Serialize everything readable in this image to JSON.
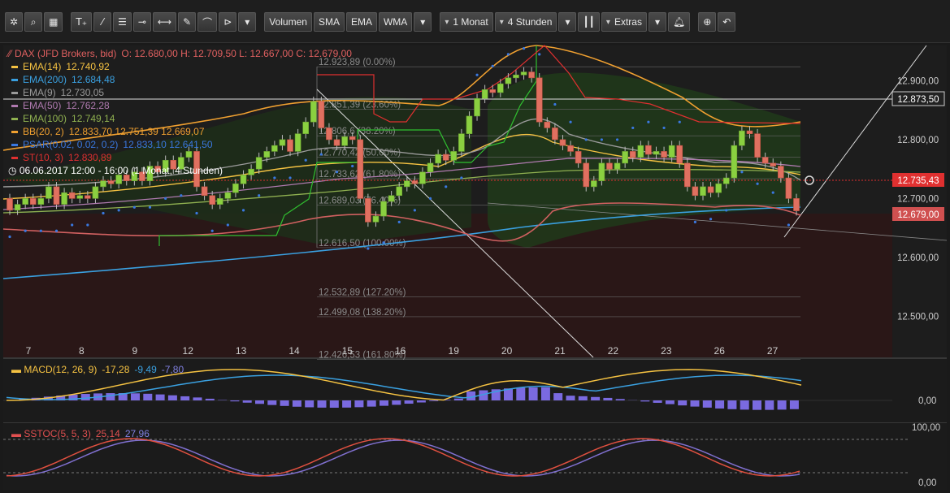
{
  "toolbar": {
    "icons": [
      "gear-icon",
      "search-icon",
      "grid-icon"
    ],
    "draw_icons": [
      "text-tool-icon",
      "line-tool-icon",
      "fibonacci-icon",
      "horizontal-line-icon",
      "segment-icon",
      "pencil-icon",
      "curve-icon",
      "arrow-tool-icon"
    ],
    "indicator_buttons": [
      "Volumen",
      "SMA",
      "EMA",
      "WMA"
    ],
    "period": "1 Monat",
    "interval": "4 Stunden",
    "chart_type_icon": "candlestick-icon",
    "extras": "Extras",
    "alarm_icon": "bell-icon",
    "zoom_icon": "zoom-icon",
    "undo_icon": "undo-icon"
  },
  "header": {
    "instrument": "DAX (JFD Brokers, bid)",
    "ohlc": "O: 12.680,00  H: 12.709,50  L: 12.667,00  C: 12.679,00",
    "legend": [
      {
        "label": "EMA(14)",
        "value": "12.740,92",
        "color": "#f5c242"
      },
      {
        "label": "EMA(200)",
        "value": "12.684,48",
        "color": "#3aa0e0"
      },
      {
        "label": "EMA(9)",
        "value": "12.730,05",
        "color": "#9a9a9a"
      },
      {
        "label": "EMA(50)",
        "value": "12.762,28",
        "color": "#b07ab0"
      },
      {
        "label": "EMA(100)",
        "value": "12.749,14",
        "color": "#8fb050"
      },
      {
        "label": "BB(20, 2)",
        "value": "12.833,70  12.751,39  12.669,07",
        "color": "#f0a030"
      },
      {
        "label": "PSAR(0.02, 0.02, 0.2)",
        "value": "12.833,10  12.641,50",
        "color": "#3a78e0"
      },
      {
        "label": "ST(10, 3)",
        "value": "12.830,89",
        "color": "#e03030"
      }
    ],
    "crosshair_date": "06.06.2017 12:00 - 16:00  (1 Monat, 4 Stunden)"
  },
  "price_labels": {
    "level": "12.873,50",
    "crosshair": "12.735,43",
    "last": "12.679,00"
  },
  "fib_levels": [
    {
      "price": 12923.89,
      "label": "12.923,89 (0.00%)"
    },
    {
      "price": 12851.39,
      "label": "12.851,39 (23.60%)"
    },
    {
      "price": 12806.6,
      "label": "12.806,6 (38.20%)"
    },
    {
      "price": 12770.42,
      "label": "12.770,42 (50.00%)"
    },
    {
      "price": 12733.62,
      "label": "12.733,62 (61.80%)"
    },
    {
      "price": 12689.03,
      "label": "12.689,03 (76.40%)"
    },
    {
      "price": 12616.5,
      "label": "12.616,50 (100.00%)"
    },
    {
      "price": 12532.89,
      "label": "12.532,89 (127.20%)"
    },
    {
      "price": 12499.08,
      "label": "12.499,08 (138.20%)"
    },
    {
      "price": 12426.53,
      "label": "12.426,53 (161.80%)"
    }
  ],
  "macd_legend": {
    "label": "MACD(12, 26, 9)",
    "v1": "-17,28",
    "v2": "-9,49",
    "v3": "-7,80"
  },
  "sstoc_legend": {
    "label": "SSTOC(5, 5, 3)",
    "v1": "25,14",
    "v2": "27,96"
  },
  "chart_data": {
    "type": "candlestick",
    "x_tick_labels": [
      "7",
      "8",
      "9",
      "12",
      "13",
      "14",
      "15",
      "16",
      "19",
      "20",
      "21",
      "22",
      "23",
      "26",
      "27"
    ],
    "price_axis": {
      "ticks": [
        12500,
        12600,
        12700,
        12800,
        12900
      ],
      "tick_labels": [
        "12.500,00",
        "12.600,00",
        "12.700,00",
        "12.800,00",
        "12.900,00"
      ],
      "ylim": [
        12430,
        12960
      ]
    },
    "candles": [
      [
        12700,
        12680
      ],
      [
        12680,
        12690
      ],
      [
        12690,
        12700
      ],
      [
        12700,
        12690
      ],
      [
        12690,
        12700
      ],
      [
        12700,
        12720
      ],
      [
        12720,
        12690
      ],
      [
        12690,
        12710
      ],
      [
        12710,
        12700
      ],
      [
        12700,
        12705
      ],
      [
        12705,
        12700
      ],
      [
        12700,
        12720
      ],
      [
        12720,
        12730
      ],
      [
        12730,
        12725
      ],
      [
        12725,
        12740
      ],
      [
        12740,
        12730
      ],
      [
        12730,
        12745
      ],
      [
        12745,
        12730
      ],
      [
        12730,
        12755
      ],
      [
        12755,
        12745
      ],
      [
        12745,
        12765
      ],
      [
        12765,
        12750
      ],
      [
        12750,
        12770
      ],
      [
        12770,
        12780
      ],
      [
        12780,
        12720
      ],
      [
        12720,
        12705
      ],
      [
        12705,
        12690
      ],
      [
        12690,
        12700
      ],
      [
        12700,
        12710
      ],
      [
        12710,
        12725
      ],
      [
        12725,
        12740
      ],
      [
        12740,
        12750
      ],
      [
        12750,
        12770
      ],
      [
        12770,
        12780
      ],
      [
        12780,
        12790
      ],
      [
        12790,
        12800
      ],
      [
        12800,
        12780
      ],
      [
        12780,
        12810
      ],
      [
        12810,
        12830
      ],
      [
        12830,
        12865
      ],
      [
        12865,
        12820
      ],
      [
        12820,
        12800
      ],
      [
        12800,
        12790
      ],
      [
        12790,
        12805
      ],
      [
        12805,
        12800
      ],
      [
        12800,
        12700
      ],
      [
        12700,
        12660
      ],
      [
        12660,
        12670
      ],
      [
        12670,
        12695
      ],
      [
        12695,
        12705
      ],
      [
        12705,
        12720
      ],
      [
        12720,
        12730
      ],
      [
        12730,
        12725
      ],
      [
        12725,
        12745
      ],
      [
        12745,
        12760
      ],
      [
        12760,
        12775
      ],
      [
        12775,
        12765
      ],
      [
        12765,
        12780
      ],
      [
        12780,
        12810
      ],
      [
        12810,
        12840
      ],
      [
        12840,
        12870
      ],
      [
        12870,
        12885
      ],
      [
        12885,
        12880
      ],
      [
        12880,
        12895
      ],
      [
        12895,
        12905
      ],
      [
        12905,
        12910
      ],
      [
        12910,
        12915
      ],
      [
        12915,
        12905
      ],
      [
        12905,
        12830
      ],
      [
        12830,
        12820
      ],
      [
        12820,
        12800
      ],
      [
        12800,
        12790
      ],
      [
        12790,
        12780
      ],
      [
        12780,
        12760
      ],
      [
        12760,
        12720
      ],
      [
        12720,
        12730
      ],
      [
        12730,
        12760
      ],
      [
        12760,
        12750
      ],
      [
        12750,
        12760
      ],
      [
        12760,
        12780
      ],
      [
        12780,
        12770
      ],
      [
        12770,
        12790
      ],
      [
        12790,
        12775
      ],
      [
        12775,
        12780
      ],
      [
        12780,
        12770
      ],
      [
        12770,
        12790
      ],
      [
        12790,
        12760
      ],
      [
        12760,
        12720
      ],
      [
        12720,
        12705
      ],
      [
        12705,
        12720
      ],
      [
        12720,
        12710
      ],
      [
        12710,
        12725
      ],
      [
        12725,
        12735
      ],
      [
        12735,
        12790
      ],
      [
        12790,
        12815
      ],
      [
        12815,
        12810
      ],
      [
        12810,
        12770
      ],
      [
        12770,
        12760
      ],
      [
        12760,
        12755
      ],
      [
        12755,
        12735
      ],
      [
        12735,
        12700
      ],
      [
        12700,
        12679
      ]
    ],
    "macd": {
      "axis_labels": [
        "0,00"
      ],
      "ylim": [
        -30,
        55
      ]
    },
    "sstoc": {
      "axis_labels": [
        "100,00",
        "0,00"
      ],
      "ylim": [
        0,
        100
      ]
    },
    "grid": false,
    "legend_placement": "top-left"
  }
}
